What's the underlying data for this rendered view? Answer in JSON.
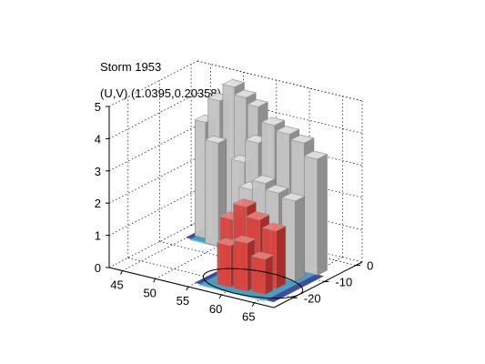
{
  "chart_data": {
    "type": "surface3d",
    "title": "Storm 1953",
    "subtitle": "(U,V) (1.0395,0.20358)",
    "xlabel": "",
    "ylabel": "",
    "zlabel": "",
    "x_ticks": [
      45,
      50,
      55,
      60,
      65
    ],
    "y_ticks": [
      0,
      -10,
      -20
    ],
    "z_ticks": [
      0,
      1,
      2,
      3,
      4,
      5
    ],
    "xlim": [
      43,
      68
    ],
    "ylim": [
      -26,
      2
    ],
    "zlim": [
      0,
      5
    ],
    "grid": true,
    "colors": {
      "surface": "#c4c4c4",
      "surface_shadow": "#8e8e8e",
      "core": "#d9443f",
      "base_low": "#2a3b8f",
      "base_mid": "#4fb3c8",
      "base_high": "#e3d36a"
    }
  }
}
